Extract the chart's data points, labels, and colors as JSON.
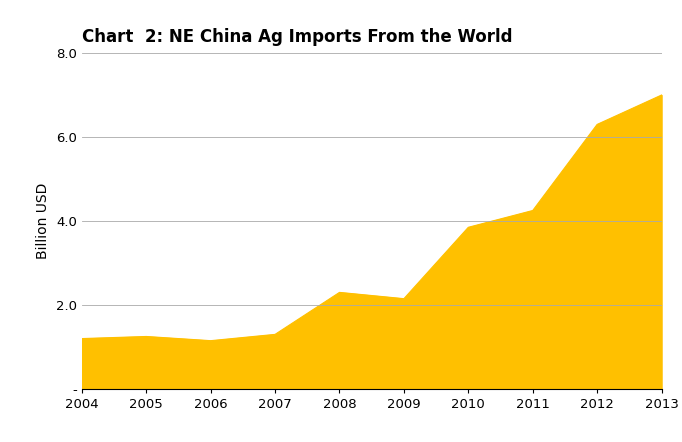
{
  "title": "Chart  2: NE China Ag Imports From the World",
  "xlabel": "",
  "ylabel": "Billion USD",
  "years": [
    2004,
    2005,
    2006,
    2007,
    2008,
    2009,
    2010,
    2011,
    2012,
    2013
  ],
  "values": [
    1.2,
    1.25,
    1.15,
    1.3,
    2.3,
    2.15,
    3.85,
    4.25,
    6.3,
    7.0
  ],
  "fill_color": "#FFC000",
  "line_color": "#FFC000",
  "background_color": "#FFFFFF",
  "ylim": [
    0,
    8.0
  ],
  "yticks": [
    0,
    2.0,
    4.0,
    6.0,
    8.0
  ],
  "ytick_labels": [
    "-",
    "2.0",
    "4.0",
    "6.0",
    "8.0"
  ],
  "title_fontsize": 12,
  "axis_label_fontsize": 10,
  "tick_fontsize": 9.5
}
